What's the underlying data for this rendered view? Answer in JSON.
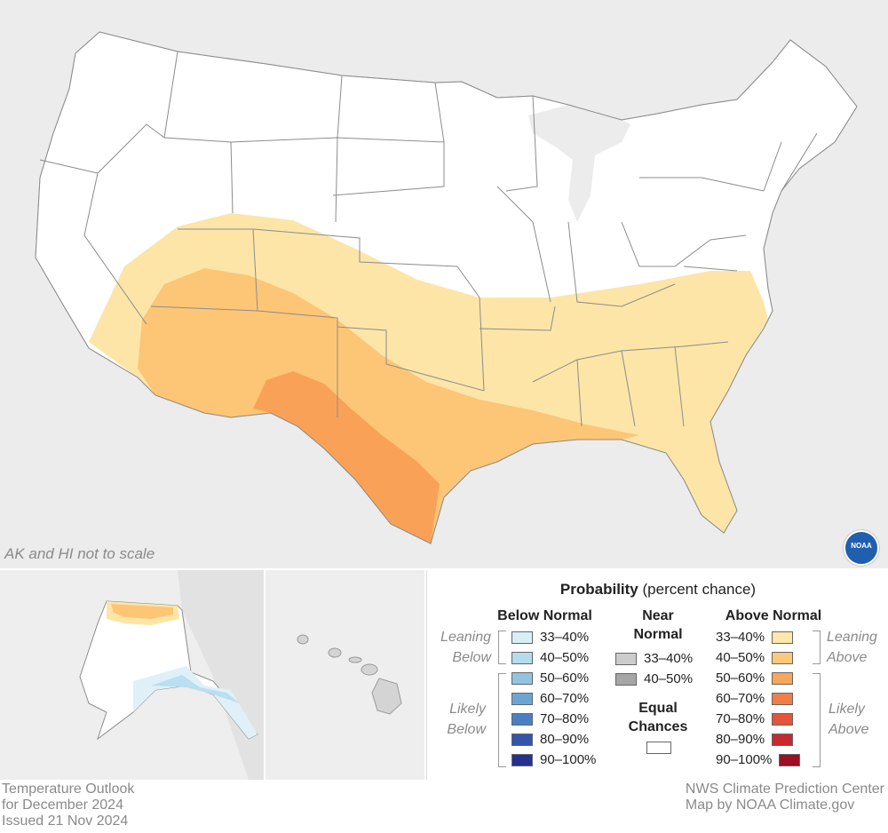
{
  "map": {
    "scale_note": "AK and HI not to scale",
    "logo_text": "NOAA",
    "colors": {
      "background": "#eeeeee",
      "land": "#ffffff",
      "above_33_40": "#fde5a8",
      "above_40_50": "#fcc676",
      "above_50_60": "#f9a257",
      "below_33_40": "#dff0f8",
      "below_40_50": "#b9dff0",
      "state_border": "#888888"
    }
  },
  "legend": {
    "title_bold": "Probability",
    "title_rest": "(percent chance)",
    "below": {
      "header": "Below Normal",
      "leaning_label": [
        "Leaning",
        "Below"
      ],
      "likely_label": [
        "Likely",
        "Below"
      ],
      "items": [
        {
          "label": "33–40%",
          "color": "#d8eef7"
        },
        {
          "label": "40–50%",
          "color": "#b3dcee"
        },
        {
          "label": "50–60%",
          "color": "#91c4e0"
        },
        {
          "label": "60–70%",
          "color": "#6ba6d3"
        },
        {
          "label": "70–80%",
          "color": "#4a7fc4"
        },
        {
          "label": "80–90%",
          "color": "#3455ac"
        },
        {
          "label": "90–100%",
          "color": "#26308f"
        }
      ]
    },
    "near": {
      "header": [
        "Near",
        "Normal"
      ],
      "items": [
        {
          "label": "33–40%",
          "color": "#cccccc"
        },
        {
          "label": "40–50%",
          "color": "#a6a6a6"
        }
      ],
      "equal_header": [
        "Equal",
        "Chances"
      ],
      "equal_color": "#ffffff"
    },
    "above": {
      "header": "Above Normal",
      "leaning_label": [
        "Leaning",
        "Above"
      ],
      "likely_label": [
        "Likely",
        "Above"
      ],
      "items": [
        {
          "label": "33–40%",
          "color": "#fde7ab"
        },
        {
          "label": "40–50%",
          "color": "#fcc97a"
        },
        {
          "label": "50–60%",
          "color": "#f9a55a"
        },
        {
          "label": "60–70%",
          "color": "#f07f47"
        },
        {
          "label": "70–80%",
          "color": "#e3543a"
        },
        {
          "label": "80–90%",
          "color": "#c8282f"
        },
        {
          "label": "90–100%",
          "color": "#9c0f26"
        }
      ]
    }
  },
  "footer": {
    "left": [
      "Temperature Outlook",
      "for December 2024",
      "Issued 21 Nov 2024"
    ],
    "right": [
      "NWS Climate Prediction Center",
      "Map by NOAA Climate.gov"
    ]
  }
}
